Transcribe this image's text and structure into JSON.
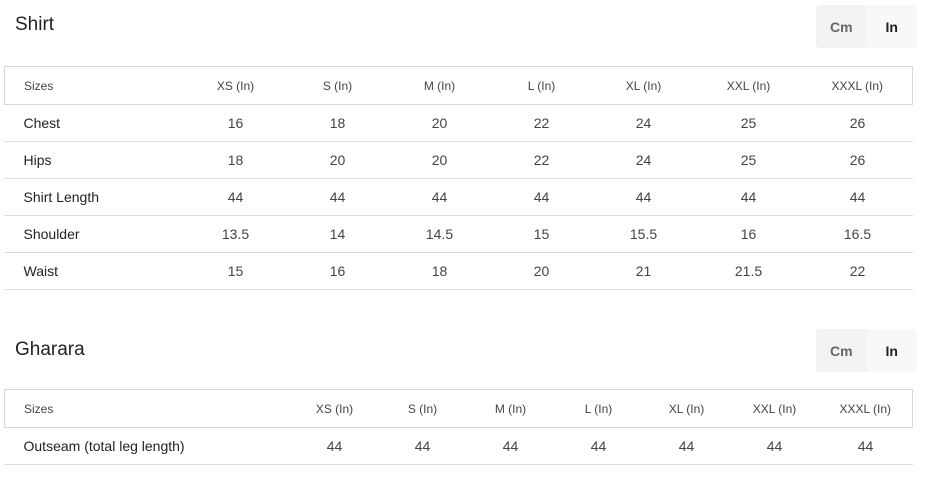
{
  "toggle": {
    "cm": "Cm",
    "in": "In",
    "selected": "In"
  },
  "shirt": {
    "title": "Shirt",
    "headers": [
      "Sizes",
      "XS (In)",
      "S (In)",
      "M (In)",
      "L (In)",
      "XL (In)",
      "XXL (In)",
      "XXXL (In)"
    ],
    "rows": [
      [
        "Chest",
        "16",
        "18",
        "20",
        "22",
        "24",
        "25",
        "26"
      ],
      [
        "Hips",
        "18",
        "20",
        "20",
        "22",
        "24",
        "25",
        "26"
      ],
      [
        "Shirt Length",
        "44",
        "44",
        "44",
        "44",
        "44",
        "44",
        "44"
      ],
      [
        "Shoulder",
        "13.5",
        "14",
        "14.5",
        "15",
        "15.5",
        "16",
        "16.5"
      ],
      [
        "Waist",
        "15",
        "16",
        "18",
        "20",
        "21",
        "21.5",
        "22"
      ]
    ]
  },
  "gharara": {
    "title": "Gharara",
    "headers": [
      "Sizes",
      "XS (In)",
      "S (In)",
      "M (In)",
      "L (In)",
      "XL (In)",
      "XXL (In)",
      "XXXL (In)"
    ],
    "rows": [
      [
        "Outseam (total leg length)",
        "44",
        "44",
        "44",
        "44",
        "44",
        "44",
        "44"
      ]
    ]
  }
}
